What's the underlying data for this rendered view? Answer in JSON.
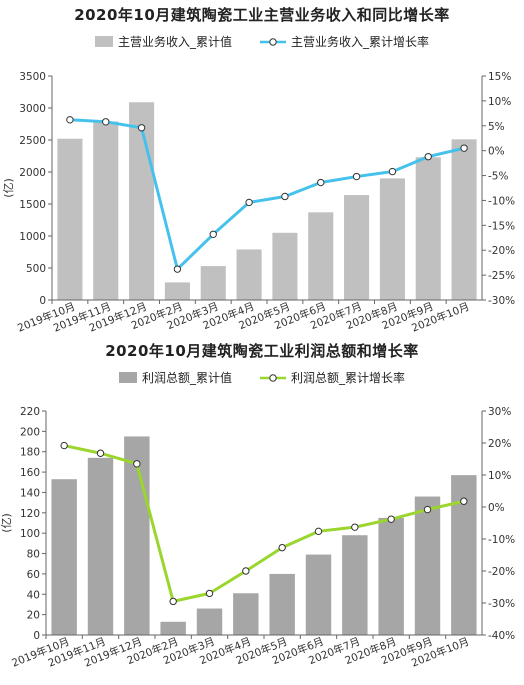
{
  "chart_data": [
    {
      "type": "bar",
      "title": "2020年10月建筑陶瓷工业主营业务收入和同比增长率",
      "categories": [
        "2019年10月",
        "2019年11月",
        "2019年12月",
        "2020年2月",
        "2020年3月",
        "2020年4月",
        "2020年5月",
        "2020年6月",
        "2020年7月",
        "2020年8月",
        "2020年9月",
        "2020年10月"
      ],
      "ylabel": "(亿)",
      "ylim": [
        0,
        3500
      ],
      "yticks": [
        0,
        500,
        1000,
        1500,
        2000,
        2500,
        3000,
        3500
      ],
      "ylim_right": [
        -30,
        15
      ],
      "yticks_right": [
        -30,
        -25,
        -20,
        -15,
        -10,
        -5,
        0,
        5,
        10,
        15
      ],
      "yticks_right_labels": [
        "-30%",
        "-25%",
        "-20%",
        "-15%",
        "-10%",
        "-5%",
        "0%",
        "5%",
        "10%",
        "15%"
      ],
      "grid": false,
      "legend_position": "top",
      "series": [
        {
          "name": "主营业务收入_累计值",
          "kind": "bar",
          "axis": "left",
          "color": "#c0c0c0",
          "values": [
            2520,
            2790,
            3090,
            275,
            530,
            790,
            1050,
            1370,
            1640,
            1900,
            2230,
            2510
          ]
        },
        {
          "name": "主营业务收入_累计增长率",
          "kind": "line",
          "axis": "right",
          "color": "#45c2ec",
          "values": [
            6.2,
            5.8,
            4.6,
            -23.8,
            -16.8,
            -10.4,
            -9.2,
            -6.4,
            -5.2,
            -4.2,
            -1.2,
            0.5
          ]
        }
      ]
    },
    {
      "type": "bar",
      "title": "2020年10月建筑陶瓷工业利润总额和增长率",
      "categories": [
        "2019年10月",
        "2019年11月",
        "2019年12月",
        "2020年2月",
        "2020年3月",
        "2020年4月",
        "2020年5月",
        "2020年6月",
        "2020年7月",
        "2020年8月",
        "2020年9月",
        "2020年10月"
      ],
      "ylabel": "(亿)",
      "ylim": [
        0,
        220
      ],
      "yticks": [
        0,
        20,
        40,
        60,
        80,
        100,
        120,
        140,
        160,
        180,
        200,
        220
      ],
      "ylim_right": [
        -40,
        30
      ],
      "yticks_right": [
        -40,
        -30,
        -20,
        -10,
        0,
        10,
        20,
        30
      ],
      "yticks_right_labels": [
        "-40%",
        "-30%",
        "-20%",
        "-10%",
        "0%",
        "10%",
        "20%",
        "30%"
      ],
      "grid": false,
      "legend_position": "top",
      "series": [
        {
          "name": "利润总额_累计值",
          "kind": "bar",
          "axis": "left",
          "color": "#a6a6a6",
          "values": [
            153,
            174,
            195,
            13,
            26,
            41,
            60,
            79,
            98,
            115,
            136,
            157
          ]
        },
        {
          "name": "利润总额_累计增长率",
          "kind": "line",
          "axis": "right",
          "color": "#9ad62d",
          "values": [
            19.2,
            16.8,
            13.5,
            -29.5,
            -27,
            -20,
            -12.7,
            -7.6,
            -6.3,
            -3.8,
            -0.8,
            1.8
          ]
        }
      ]
    }
  ]
}
